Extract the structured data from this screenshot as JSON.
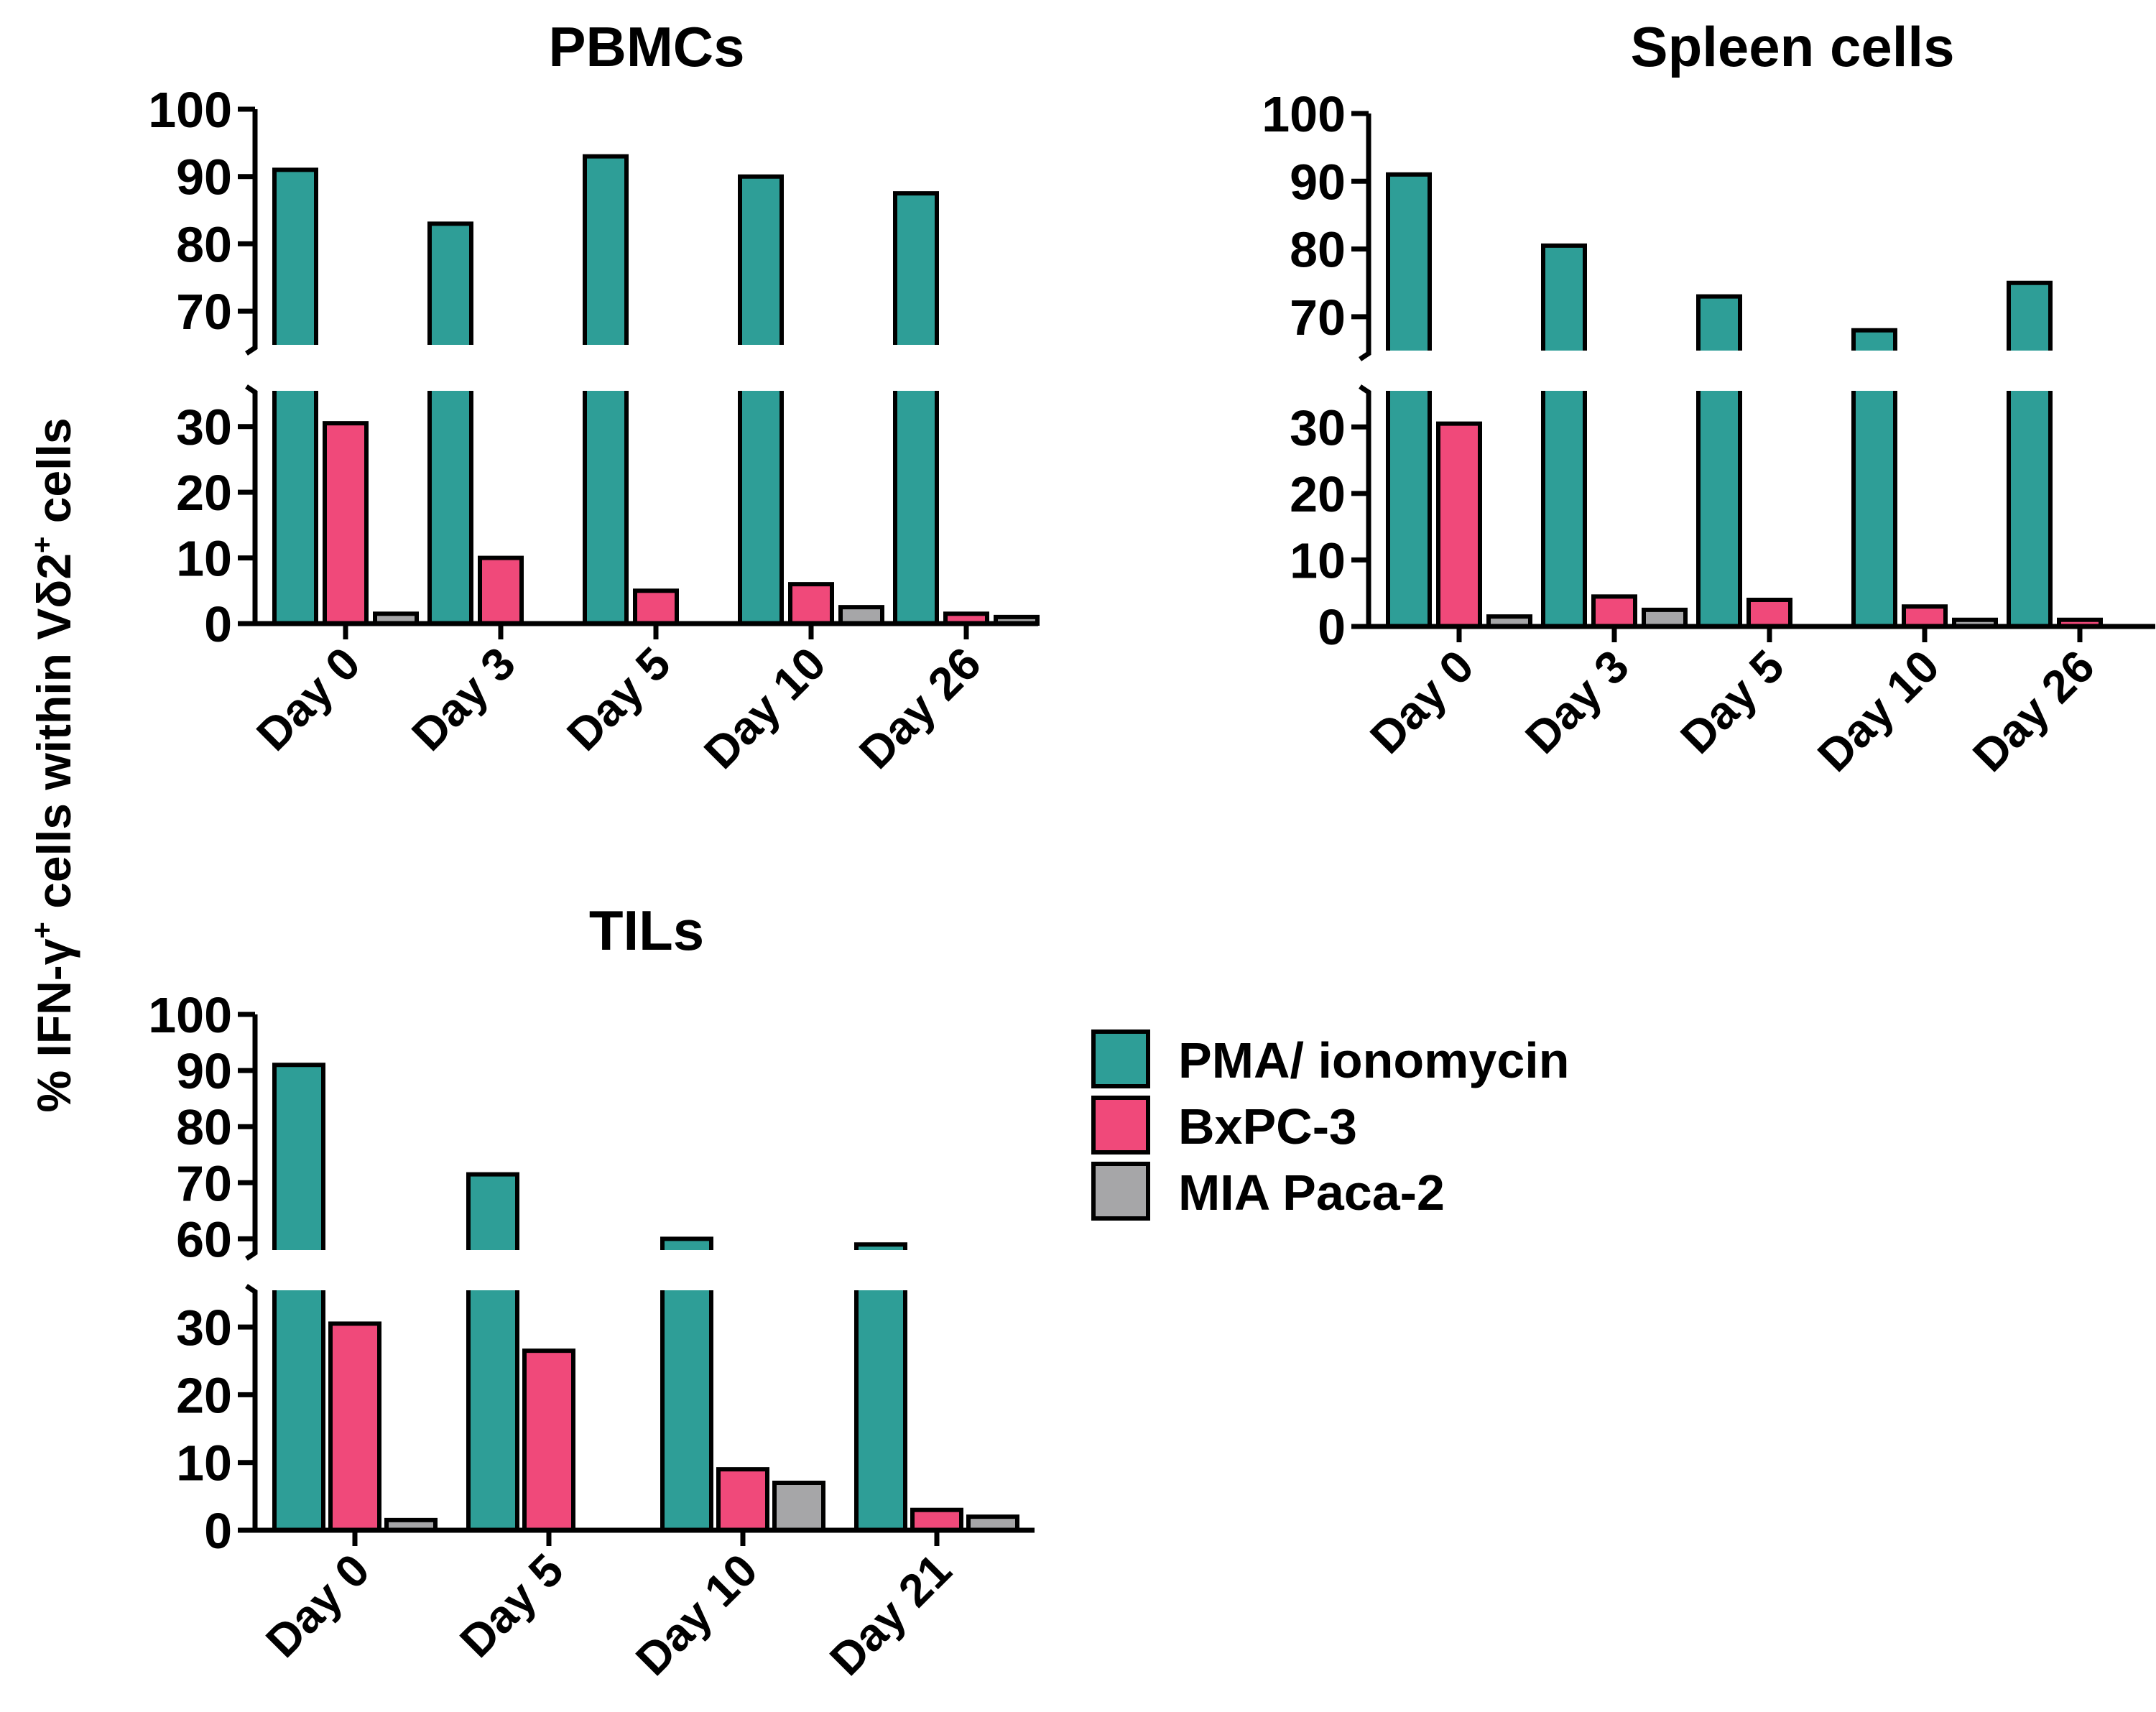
{
  "figure": {
    "ylabel": "% IFN-γ",
    "ylabel_sup1": "+",
    "ylabel_mid": " cells within Vδ2",
    "ylabel_sup2": "+",
    "ylabel_end": " cells"
  },
  "legend": {
    "items": [
      {
        "label": "PMA/ ionomycin",
        "color": "#2e9e97"
      },
      {
        "label": "BxPC-3",
        "color": "#f0497a"
      },
      {
        "label": "MIA Paca-2",
        "color": "#a6a6a8"
      }
    ]
  },
  "chart_data": [
    {
      "type": "bar",
      "title": "PBMCs",
      "categories": [
        "Day 0",
        "Day 3",
        "Day 5",
        "Day 10",
        "Day 26"
      ],
      "series": [
        {
          "name": "PMA/ ionomycin",
          "values": [
            91,
            83,
            93,
            90,
            87.5
          ]
        },
        {
          "name": "BxPC-3",
          "values": [
            30.5,
            10,
            5,
            6,
            1.5
          ]
        },
        {
          "name": "MIA Paca-2",
          "values": [
            1.5,
            0,
            0,
            2.5,
            1
          ]
        }
      ],
      "broken_axis": {
        "lower": [
          0,
          35
        ],
        "upper": [
          65,
          100
        ]
      },
      "yticks_lower": [
        "0",
        "10",
        "20",
        "30"
      ],
      "yticks_upper": [
        "70",
        "80",
        "90",
        "100"
      ]
    },
    {
      "type": "bar",
      "title": "Spleen cells",
      "categories": [
        "Day 0",
        "Day 3",
        "Day 5",
        "Day 10",
        "Day 26"
      ],
      "series": [
        {
          "name": "PMA/ ionomycin",
          "values": [
            91,
            80.5,
            73,
            68,
            75
          ]
        },
        {
          "name": "BxPC-3",
          "values": [
            30.5,
            4.5,
            4,
            3,
            1
          ]
        },
        {
          "name": "MIA Paca-2",
          "values": [
            1.5,
            2.5,
            0,
            1,
            0
          ]
        }
      ],
      "broken_axis": {
        "lower": [
          0,
          35
        ],
        "upper": [
          65,
          100
        ]
      },
      "yticks_lower": [
        "0",
        "10",
        "20",
        "30"
      ],
      "yticks_upper": [
        "70",
        "80",
        "90",
        "100"
      ]
    },
    {
      "type": "bar",
      "title": "TILs",
      "categories": [
        "Day 0",
        "Day 5",
        "Day 10",
        "Day 21"
      ],
      "series": [
        {
          "name": "PMA/ ionomycin",
          "values": [
            91,
            71.5,
            60,
            59
          ]
        },
        {
          "name": "BxPC-3",
          "values": [
            30.5,
            26.5,
            9,
            3
          ]
        },
        {
          "name": "MIA Paca-2",
          "values": [
            1.5,
            0,
            7,
            2
          ]
        }
      ],
      "broken_axis": {
        "lower": [
          0,
          35
        ],
        "upper": [
          58,
          100
        ]
      },
      "yticks_lower": [
        "0",
        "10",
        "20",
        "30"
      ],
      "yticks_upper": [
        "60",
        "70",
        "80",
        "90",
        "100"
      ]
    }
  ]
}
